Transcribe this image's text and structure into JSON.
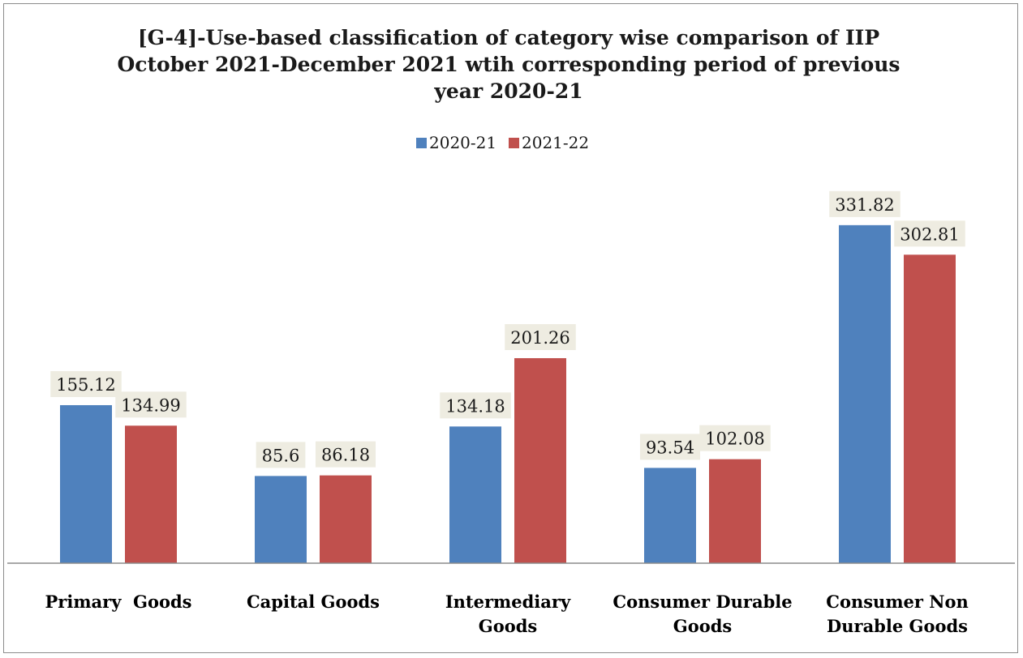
{
  "chart_data": {
    "type": "bar",
    "title": "[G-4]-Use-based classification of category wise comparison of IIP October 2021-December 2021 wtih corresponding period of previous year 2020-21",
    "title_lines": [
      "[G-4]-Use-based classification of category wise comparison of IIP",
      "October 2021-December 2021 wtih corresponding period of previous",
      "year 2020-21"
    ],
    "categories": [
      [
        "Primary  Goods"
      ],
      [
        "Capital Goods"
      ],
      [
        "Intermediary",
        "Goods"
      ],
      [
        "Consumer Durable",
        "Goods"
      ],
      [
        "Consumer Non",
        "Durable Goods"
      ]
    ],
    "series": [
      {
        "name": "2020-21",
        "color": "#4f81bd",
        "values": [
          155.12,
          85.6,
          134.18,
          93.54,
          331.82
        ]
      },
      {
        "name": "2021-22",
        "color": "#c0504d",
        "values": [
          134.99,
          86.18,
          201.26,
          102.08,
          302.81
        ]
      }
    ],
    "ylim": [
      0,
      350
    ],
    "grid": false,
    "data_labels": true,
    "data_label_background": "#eeece1",
    "legend_position": "top"
  }
}
